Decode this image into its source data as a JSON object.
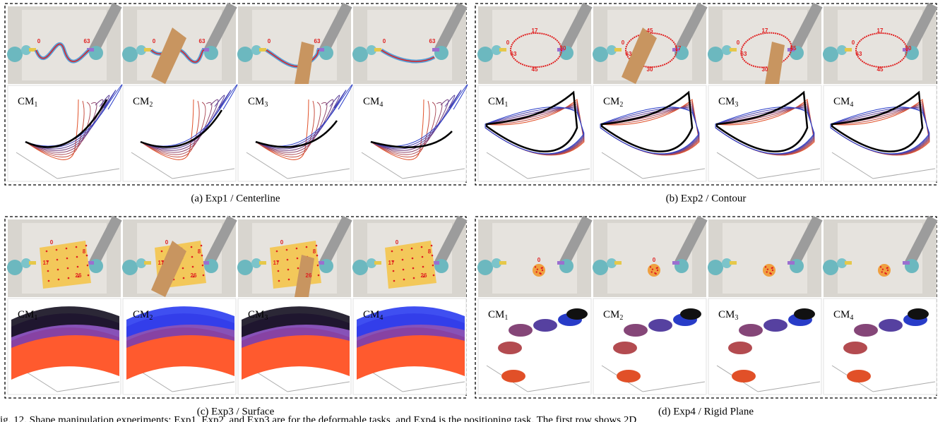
{
  "figure": {
    "panels": [
      {
        "kind": "centerline",
        "caption": "(a) Exp1 / Centerline",
        "images": [
          {
            "labels": [
              "0",
              "63"
            ]
          },
          {
            "labels": [
              "0",
              "63"
            ]
          },
          {
            "labels": [
              "0",
              "63"
            ]
          },
          {
            "labels": [
              "0",
              "63"
            ]
          }
        ],
        "plots": [
          {
            "label": "CM",
            "sub": "1"
          },
          {
            "label": "CM",
            "sub": "2"
          },
          {
            "label": "CM",
            "sub": "3"
          },
          {
            "label": "CM",
            "sub": "4"
          }
        ]
      },
      {
        "kind": "contour",
        "caption": "(b) Exp2 / Contour",
        "images": [
          {
            "labels": [
              "0",
              "17",
              "30",
              "63",
              "45"
            ]
          },
          {
            "labels": [
              "0",
              "45",
              "17",
              "63",
              "30"
            ]
          },
          {
            "labels": [
              "0",
              "17",
              "45",
              "63",
              "30"
            ]
          },
          {
            "labels": [
              "0",
              "17",
              "30",
              "63",
              "45"
            ]
          }
        ],
        "plots": [
          {
            "label": "CM",
            "sub": "1"
          },
          {
            "label": "CM",
            "sub": "2"
          },
          {
            "label": "CM",
            "sub": "3"
          },
          {
            "label": "CM",
            "sub": "4"
          }
        ]
      },
      {
        "kind": "surface",
        "caption": "(c) Exp3 / Surface",
        "images": [
          {
            "labels": [
              "0",
              "8",
              "17",
              "26"
            ]
          },
          {
            "labels": [
              "0",
              "8",
              "17",
              "26"
            ]
          },
          {
            "labels": [
              "0",
              "8",
              "17",
              "26"
            ]
          },
          {
            "labels": [
              "0",
              "8",
              "17",
              "26"
            ]
          }
        ],
        "plots": [
          {
            "label": "CM",
            "sub": "1"
          },
          {
            "label": "CM",
            "sub": "2"
          },
          {
            "label": "CM",
            "sub": "3"
          },
          {
            "label": "CM",
            "sub": "4"
          }
        ]
      },
      {
        "kind": "rigid",
        "caption": "(d) Exp4 / Rigid Plane",
        "images": [
          {
            "labels": [
              "0"
            ]
          },
          {
            "labels": [
              "0"
            ]
          },
          {
            "labels": []
          },
          {
            "labels": []
          }
        ],
        "plots": [
          {
            "label": "CM",
            "sub": "1"
          },
          {
            "label": "CM",
            "sub": "2"
          },
          {
            "label": "CM",
            "sub": "3"
          },
          {
            "label": "CM",
            "sub": "4"
          }
        ]
      }
    ],
    "caption": "ig. 12.   Shape manipulation experiments: Exp1, Exp2, and Exp3 are for the deformable tasks, and Exp4 is the positioning task. The first row shows 2D"
  }
}
